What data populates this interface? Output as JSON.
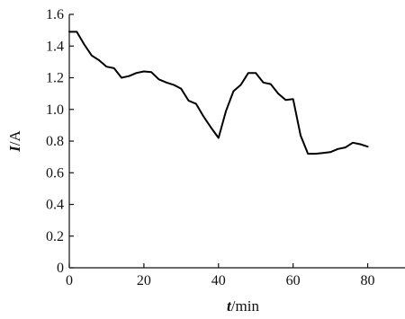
{
  "chart_data": {
    "type": "line",
    "xlabel_italic": "t",
    "xlabel_unit": "/min",
    "ylabel_italic": "I",
    "ylabel_unit": "/A",
    "xlim": [
      0,
      90
    ],
    "ylim": [
      0,
      1.6
    ],
    "xticks": [
      0,
      20,
      40,
      60,
      80
    ],
    "yticks": [
      0,
      0.2,
      0.4,
      0.6,
      0.8,
      1.0,
      1.2,
      1.4,
      1.6
    ],
    "ytick_labels": [
      "0",
      "0.2",
      "0.4",
      "0.6",
      "0.8",
      "1.0",
      "1.2",
      "1.4",
      "1.6"
    ],
    "grid": false,
    "series": [
      {
        "x": [
          0,
          2,
          4,
          6,
          8,
          10,
          12,
          14,
          16,
          18,
          20,
          22,
          24,
          26,
          28,
          30,
          32,
          34,
          36,
          38,
          40,
          42,
          44,
          46,
          48,
          50,
          52,
          54,
          56,
          58,
          60,
          62,
          64,
          66,
          68,
          70,
          72,
          74,
          76,
          78,
          80
        ],
        "y": [
          1.49,
          1.49,
          1.41,
          1.34,
          1.31,
          1.27,
          1.26,
          1.2,
          1.21,
          1.23,
          1.24,
          1.235,
          1.19,
          1.17,
          1.155,
          1.13,
          1.055,
          1.035,
          0.955,
          0.885,
          0.82,
          0.99,
          1.115,
          1.155,
          1.23,
          1.23,
          1.17,
          1.16,
          1.1,
          1.06,
          1.065,
          0.835,
          0.72,
          0.72,
          0.725,
          0.73,
          0.75,
          0.76,
          0.79,
          0.78,
          0.765
        ]
      }
    ]
  }
}
